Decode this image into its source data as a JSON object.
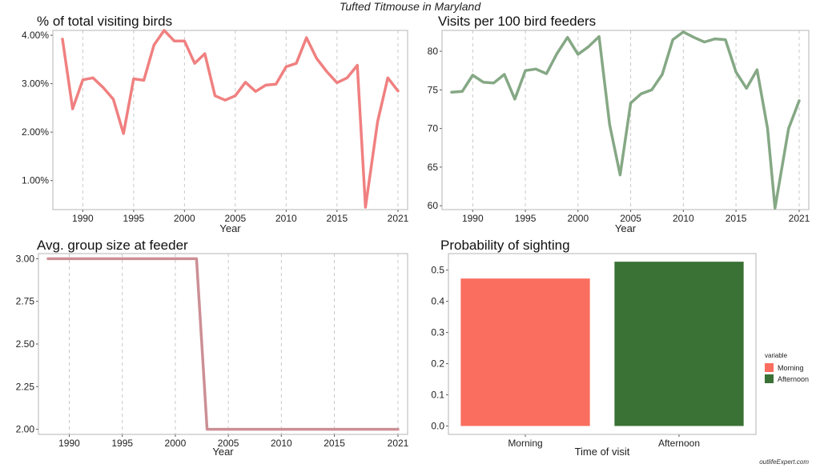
{
  "page_title": "Tufted Titmouse in Maryland",
  "watermark": "outlifeExpert.com",
  "colors": {
    "pink": "#f08080",
    "green": "#85a885",
    "avg_line": "#cc8f95",
    "morning": "#fa6e5f",
    "afternoon": "#3a7134",
    "grid": "#c8c8c8",
    "border": "#b4b4b4"
  },
  "chart_data": [
    {
      "type": "line",
      "title": "% of total visiting birds",
      "xlabel": "Year",
      "ylabel": "",
      "xlim": [
        1988,
        2021
      ],
      "ylim": [
        0.4,
        4.1
      ],
      "x_ticks": [
        1990,
        1995,
        2000,
        2005,
        2010,
        2015,
        2021
      ],
      "y_ticks": [
        1,
        2,
        3,
        4
      ],
      "y_tick_labels": [
        "1.00%",
        "2.00%",
        "3.00%",
        "4.00%"
      ],
      "grid": "vertical dashed",
      "series": [
        {
          "color": "#f08080",
          "x": [
            1988,
            1989,
            1990,
            1991,
            1992,
            1993,
            1994,
            1995,
            1996,
            1997,
            1998,
            1999,
            2000,
            2001,
            2002,
            2003,
            2004,
            2005,
            2006,
            2007,
            2008,
            2009,
            2010,
            2011,
            2012,
            2013,
            2014,
            2015,
            2016,
            2017,
            2017.8,
            2019,
            2020,
            2021
          ],
          "y": [
            3.92,
            2.48,
            3.08,
            3.12,
            2.92,
            2.68,
            1.97,
            3.1,
            3.07,
            3.8,
            4.1,
            3.88,
            3.88,
            3.42,
            3.62,
            2.75,
            2.66,
            2.75,
            3.03,
            2.84,
            2.97,
            2.99,
            3.35,
            3.42,
            3.95,
            3.52,
            3.25,
            3.02,
            3.12,
            3.38,
            0.45,
            2.22,
            3.12,
            2.85
          ]
        }
      ]
    },
    {
      "type": "line",
      "title": "Visits per 100 bird feeders",
      "xlabel": "Year",
      "ylabel": "",
      "xlim": [
        1988,
        2021
      ],
      "ylim": [
        59.5,
        82.7
      ],
      "x_ticks": [
        1990,
        1995,
        2000,
        2005,
        2010,
        2015,
        2021
      ],
      "y_ticks": [
        60,
        65,
        70,
        75,
        80
      ],
      "y_tick_labels": [
        "60",
        "65",
        "70",
        "75",
        "80"
      ],
      "grid": "vertical dashed",
      "series": [
        {
          "color": "#85a885",
          "x": [
            1988,
            1989,
            1990,
            1991,
            1992,
            1993,
            1994,
            1995,
            1996,
            1997,
            1998,
            1999,
            2000,
            2001,
            2002,
            2003,
            2004,
            2005,
            2006,
            2007,
            2008,
            2009,
            2010,
            2011,
            2012,
            2013,
            2014,
            2015,
            2016,
            2017,
            2018,
            2018.7,
            2020,
            2021
          ],
          "y": [
            74.7,
            74.8,
            76.9,
            76.0,
            75.9,
            77.0,
            73.8,
            77.5,
            77.7,
            77.1,
            79.7,
            81.8,
            79.6,
            80.6,
            81.9,
            70.5,
            64.0,
            73.3,
            74.5,
            75.0,
            77.0,
            81.5,
            82.5,
            81.8,
            81.2,
            81.6,
            81.5,
            77.3,
            75.2,
            77.6,
            70.0,
            59.7,
            70.0,
            73.6
          ]
        }
      ]
    },
    {
      "type": "line",
      "title": "Avg. group size at feeder",
      "xlabel": "Year",
      "ylabel": "",
      "xlim": [
        1988,
        2021
      ],
      "ylim": [
        1.97,
        3.03
      ],
      "x_ticks": [
        1990,
        1995,
        2000,
        2005,
        2010,
        2015,
        2021
      ],
      "y_ticks": [
        2.0,
        2.25,
        2.5,
        2.75,
        3.0
      ],
      "y_tick_labels": [
        "2.00",
        "2.25",
        "2.50",
        "2.75",
        "3.00"
      ],
      "grid": "vertical dashed",
      "series": [
        {
          "color": "#cc8f95",
          "x": [
            1988,
            2002,
            2003,
            2021
          ],
          "y": [
            3.0,
            3.0,
            2.0,
            2.0
          ]
        }
      ]
    },
    {
      "type": "bar",
      "title": "Probability of sighting",
      "xlabel": "Time of visit",
      "ylabel": "",
      "categories": [
        "Morning",
        "Afternoon"
      ],
      "values": [
        0.473,
        0.527
      ],
      "colors": [
        "#fa6e5f",
        "#3a7134"
      ],
      "ylim": [
        -0.027,
        0.553
      ],
      "y_ticks": [
        0.0,
        0.1,
        0.2,
        0.3,
        0.4,
        0.5
      ],
      "y_tick_labels": [
        "0.0",
        "0.1",
        "0.2",
        "0.3",
        "0.4",
        "0.5"
      ],
      "legend": {
        "title": "variable",
        "position": "right",
        "entries": [
          "Morning",
          "Afternoon"
        ]
      }
    }
  ]
}
